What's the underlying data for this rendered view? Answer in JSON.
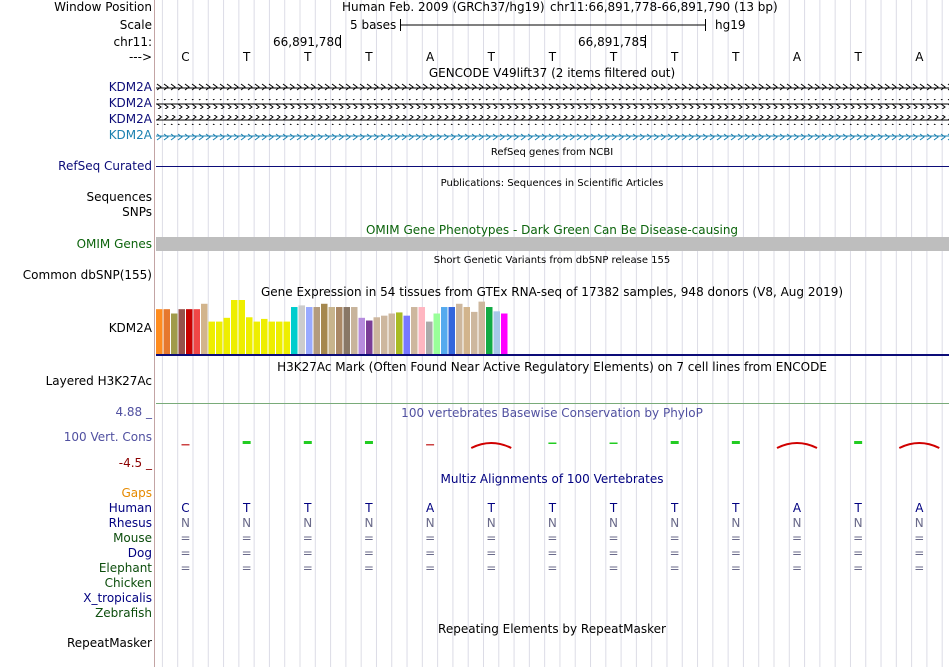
{
  "header": {
    "window_position_label": "Window Position",
    "assembly_text": "Human Feb. 2009 (GRCh37/hg19)",
    "coords_text": "chr11:66,891,778-66,891,790 (13 bp)",
    "scale_label": "Scale",
    "scale_text": "5 bases",
    "db_text": "hg19",
    "chrom_label": "chr11:",
    "pos_left": "66,891,780",
    "pos_right": "66,891,785",
    "strand_label": "--->"
  },
  "bases": [
    "C",
    "T",
    "T",
    "T",
    "A",
    "T",
    "T",
    "T",
    "T",
    "T",
    "A",
    "T",
    "A"
  ],
  "gencode": {
    "title": "GENCODE V49lift37 (2 items filtered out)",
    "genes": [
      "KDM2A",
      "KDM2A",
      "KDM2A",
      "KDM2A"
    ]
  },
  "refseq": {
    "label": "RefSeq Curated",
    "title": "RefSeq genes from NCBI"
  },
  "publications": {
    "label": "Sequences",
    "title": "Publications: Sequences in Scientific Articles"
  },
  "snps_label": "SNPs",
  "omim": {
    "label": "OMIM Genes",
    "title": "OMIM Gene Phenotypes - Dark Green Can Be Disease-causing"
  },
  "dbsnp": {
    "label": "Common dbSNP(155)",
    "title": "Short Genetic Variants from dbSNP release 155"
  },
  "gtex": {
    "title": "Gene Expression in 54 tissues from GTEx RNA-seq of 17382 samples, 948 donors (V8, Aug 2019)",
    "gene": "KDM2A",
    "bars": [
      {
        "color": "#ff8c1e",
        "value": 0.83
      },
      {
        "color": "#e6782d",
        "value": 0.83
      },
      {
        "color": "#a09b4b",
        "value": 0.75
      },
      {
        "color": "#96504b",
        "value": 0.83
      },
      {
        "color": "#c80000",
        "value": 0.83
      },
      {
        "color": "#f04646",
        "value": 0.83
      },
      {
        "color": "#d2b48c",
        "value": 0.93
      },
      {
        "color": "#eeee00",
        "value": 0.6
      },
      {
        "color": "#eeee00",
        "value": 0.6
      },
      {
        "color": "#eeee00",
        "value": 0.67
      },
      {
        "color": "#eeee00",
        "value": 1.0
      },
      {
        "color": "#eeee00",
        "value": 1.0
      },
      {
        "color": "#eeee00",
        "value": 0.68
      },
      {
        "color": "#eeee00",
        "value": 0.6
      },
      {
        "color": "#eeee00",
        "value": 0.65
      },
      {
        "color": "#eeee00",
        "value": 0.6
      },
      {
        "color": "#eeee00",
        "value": 0.6
      },
      {
        "color": "#eeee00",
        "value": 0.6
      },
      {
        "color": "#00cdcd",
        "value": 0.87
      },
      {
        "color": "#cccccc",
        "value": 0.9
      },
      {
        "color": "#99aaff",
        "value": 0.87
      },
      {
        "color": "#b39b7e",
        "value": 0.87
      },
      {
        "color": "#a5884e",
        "value": 0.93
      },
      {
        "color": "#c8b48c",
        "value": 0.87
      },
      {
        "color": "#aa8866",
        "value": 0.87
      },
      {
        "color": "#887766",
        "value": 0.87
      },
      {
        "color": "#c8b49b",
        "value": 0.87
      },
      {
        "color": "#b68cde",
        "value": 0.67
      },
      {
        "color": "#7a3d96",
        "value": 0.62
      },
      {
        "color": "#cdb79e",
        "value": 0.68
      },
      {
        "color": "#cdb79e",
        "value": 0.71
      },
      {
        "color": "#cdb79e",
        "value": 0.75
      },
      {
        "color": "#aabb22",
        "value": 0.77
      },
      {
        "color": "#7777ff",
        "value": 0.71
      },
      {
        "color": "#cdb79e",
        "value": 0.87
      },
      {
        "color": "#ffb6c1",
        "value": 0.87
      },
      {
        "color": "#aaaaaa",
        "value": 0.6
      },
      {
        "color": "#99ff99",
        "value": 0.75
      },
      {
        "color": "#55aaee",
        "value": 0.87
      },
      {
        "color": "#3366dd",
        "value": 0.87
      },
      {
        "color": "#cdb79e",
        "value": 0.93
      },
      {
        "color": "#d2b48c",
        "value": 0.87
      },
      {
        "color": "#cdb79e",
        "value": 0.78
      },
      {
        "color": "#cdb79e",
        "value": 0.97
      },
      {
        "color": "#11aa44",
        "value": 0.87
      },
      {
        "color": "#a6c8e8",
        "value": 0.79
      },
      {
        "color": "#ff00ff",
        "value": 0.75
      }
    ]
  },
  "h3k27ac": {
    "label": "Layered H3K27Ac",
    "title": "H3K27Ac Mark (Often Found Near Active Regulatory Elements) on 7 cell lines from ENCODE"
  },
  "phylop": {
    "title": "100 vertebrates Basewise Conservation by PhyloP",
    "label": "100 Vert. Cons",
    "max_label": "4.88 _",
    "min_label": "-4.5 _",
    "ymax": 4.88,
    "ymin": -4.5,
    "values": [
      -0.2,
      0.5,
      0.5,
      0.5,
      -0.1,
      -0.9,
      0.1,
      0.2,
      0.5,
      0.5,
      -1.1,
      0.5,
      -1.0
    ]
  },
  "multiz": {
    "title": "Multiz Alignments of 100 Vertebrates",
    "gaps_label": "Gaps",
    "species": [
      {
        "name": "Human",
        "color": "#000080",
        "row": [
          "C",
          "T",
          "T",
          "T",
          "A",
          "T",
          "T",
          "T",
          "T",
          "T",
          "A",
          "T",
          "A"
        ]
      },
      {
        "name": "Rhesus",
        "color": "#000080",
        "row": [
          "N",
          "N",
          "N",
          "N",
          "N",
          "N",
          "N",
          "N",
          "N",
          "N",
          "N",
          "N",
          "N"
        ]
      },
      {
        "name": "Mouse",
        "color": "#0c4d0c",
        "row": [
          "=",
          "=",
          "=",
          "=",
          "=",
          "=",
          "=",
          "=",
          "=",
          "=",
          "=",
          "=",
          "="
        ]
      },
      {
        "name": "Dog",
        "color": "#000080",
        "row": [
          "=",
          "=",
          "=",
          "=",
          "=",
          "=",
          "=",
          "=",
          "=",
          "=",
          "=",
          "=",
          "="
        ]
      },
      {
        "name": "Elephant",
        "color": "#0c4d0c",
        "row": [
          "=",
          "=",
          "=",
          "=",
          "=",
          "=",
          "=",
          "=",
          "=",
          "=",
          "=",
          "=",
          "="
        ]
      },
      {
        "name": "Chicken",
        "color": "#0c4d0c",
        "row": []
      },
      {
        "name": "X_tropicalis",
        "color": "#000080",
        "row": []
      },
      {
        "name": "Zebrafish",
        "color": "#0c4d0c",
        "row": []
      }
    ]
  },
  "repeatmasker": {
    "label": "RepeatMasker",
    "title": "Repeating Elements by RepeatMasker"
  },
  "colors": {
    "gene_navy": "#0c0c78",
    "gene_teal": "#1a80b0",
    "omim_green": "#0c640c",
    "omim_gray": "#bebebe",
    "phylop_title": "#5050a0",
    "phylop_min": "#8b0000",
    "separator": "#c3a4a4"
  }
}
